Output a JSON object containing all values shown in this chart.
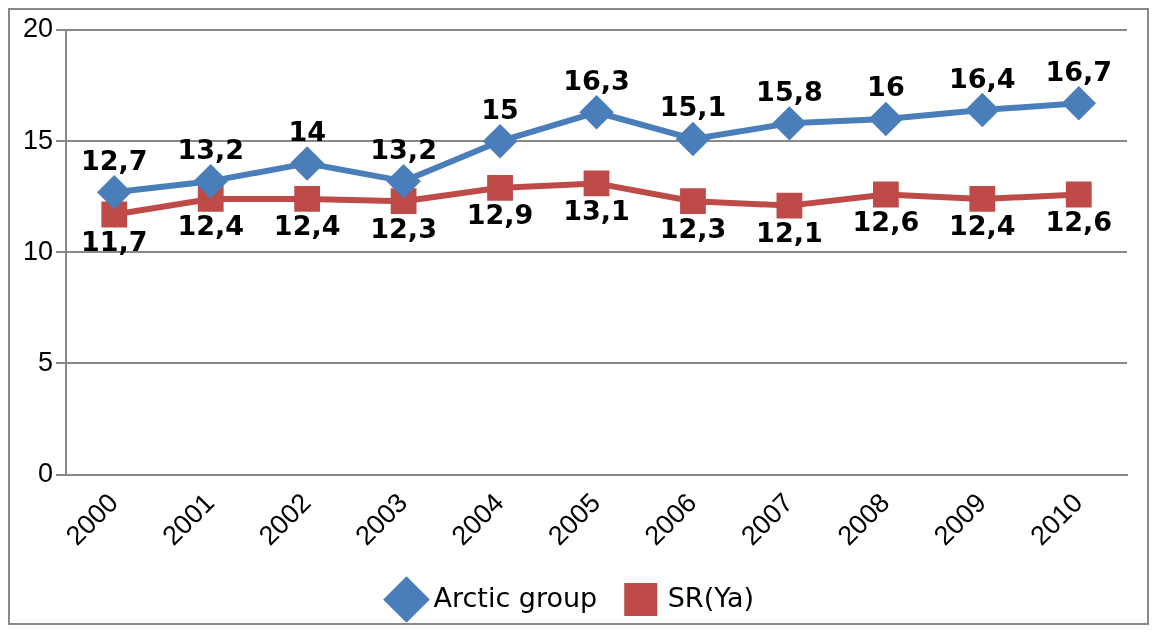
{
  "chart_data": {
    "type": "line",
    "categories": [
      "2000",
      "2001",
      "2002",
      "2003",
      "2004",
      "2005",
      "2006",
      "2007",
      "2008",
      "2009",
      "2010"
    ],
    "series": [
      {
        "name": "Arctic group",
        "color": "#4a7ebb",
        "marker": "diamond",
        "values": [
          12.7,
          13.2,
          14,
          13.2,
          15,
          16.3,
          15.1,
          15.8,
          16,
          16.4,
          16.7
        ],
        "value_labels": [
          "12,7",
          "13,2",
          "14",
          "13,2",
          "15",
          "16,3",
          "15,1",
          "15,8",
          "16",
          "16,4",
          "16,7"
        ]
      },
      {
        "name": "SR(Ya)",
        "color": "#be4b48",
        "marker": "square",
        "values": [
          11.7,
          12.4,
          12.4,
          12.3,
          12.9,
          13.1,
          12.3,
          12.1,
          12.6,
          12.4,
          12.6
        ],
        "value_labels": [
          "11,7",
          "12,4",
          "12,4",
          "12,3",
          "12,9",
          "13,1",
          "12,3",
          "12,1",
          "12,6",
          "12,4",
          "12,6"
        ]
      }
    ],
    "ylim": [
      0,
      20
    ],
    "yticks": [
      0,
      5,
      10,
      15,
      20
    ],
    "grid": "y",
    "legend": "bottom",
    "line_style": "solid"
  }
}
